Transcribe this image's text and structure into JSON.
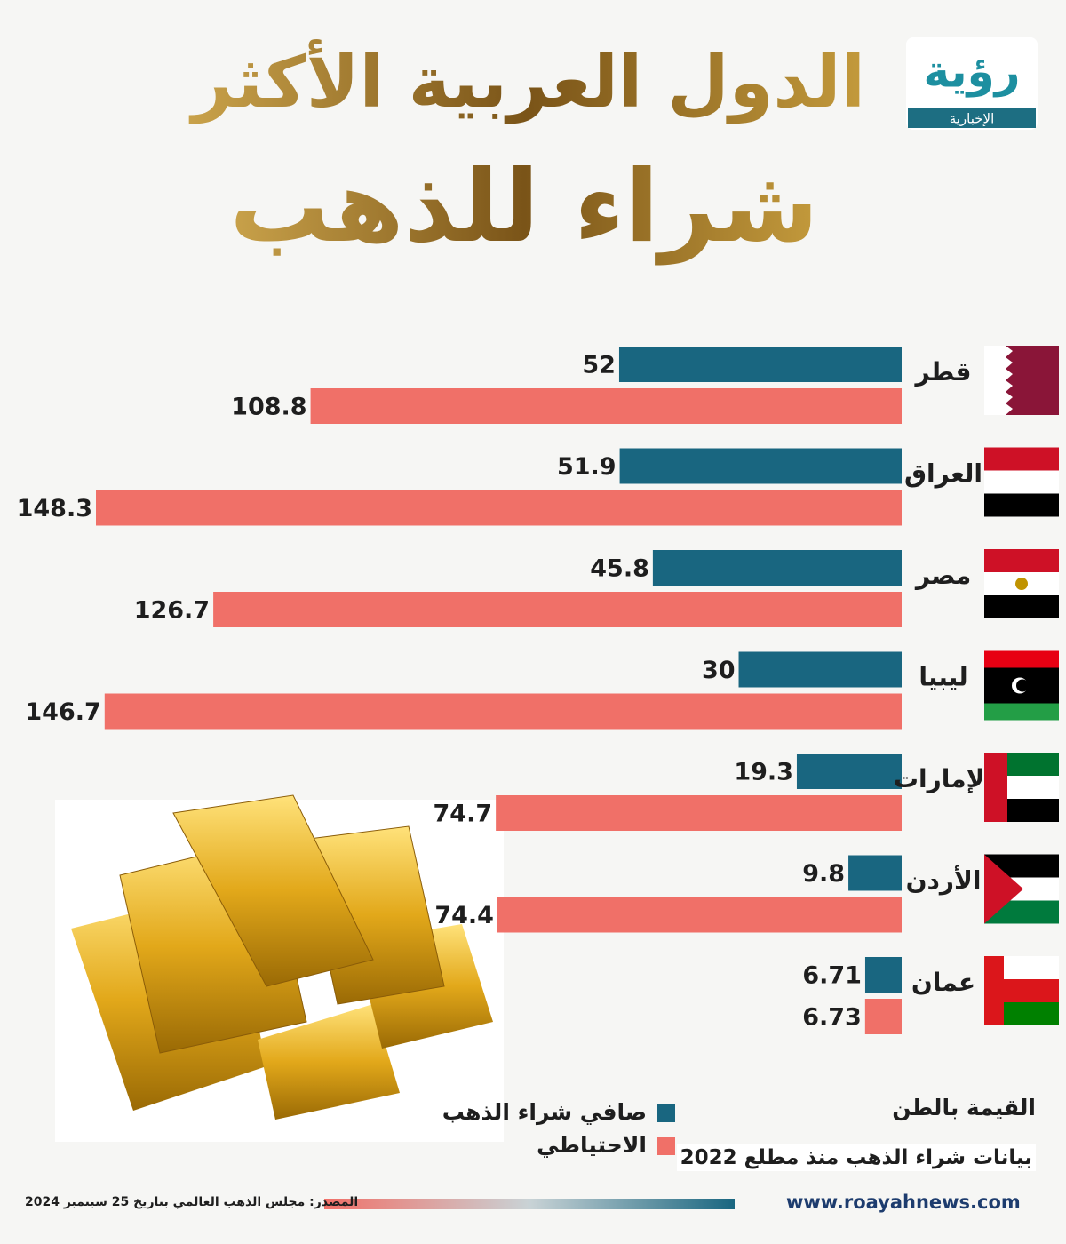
{
  "logo": {
    "name": "رؤية",
    "tagline": "الإخبارية"
  },
  "chart_data": {
    "type": "bar",
    "orientation": "horizontal",
    "title": [
      "الدول العربية الأكثر",
      "شراء للذهب"
    ],
    "categories": [
      "قطر",
      "العراق",
      "مصر",
      "ليبيا",
      "الإمارات",
      "الأردن",
      "عمان"
    ],
    "series": [
      {
        "name": "صافي شراء الذهب",
        "color": "#196680",
        "values": [
          52,
          51.9,
          45.8,
          30,
          19.3,
          9.8,
          6.71
        ]
      },
      {
        "name": "الاحتياطي",
        "color": "#f07068",
        "values": [
          108.8,
          148.3,
          126.7,
          146.7,
          74.7,
          74.4,
          6.73
        ]
      }
    ],
    "unit_note": "القيمة بالطن",
    "data_note": "بيانات شراء الذهب منذ مطلع 2022"
  },
  "footer": {
    "source": "المصدر: مجلس الذهب العالمي بتاريخ 25 سبتمبر 2024",
    "website": "www.roayahnews.com"
  }
}
